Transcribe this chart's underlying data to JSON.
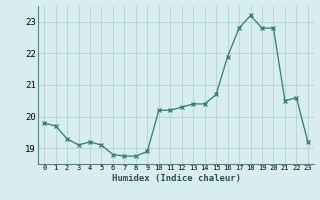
{
  "x": [
    0,
    1,
    2,
    3,
    4,
    5,
    6,
    7,
    8,
    9,
    10,
    11,
    12,
    13,
    14,
    15,
    16,
    17,
    18,
    19,
    20,
    21,
    22,
    23
  ],
  "y": [
    19.8,
    19.7,
    19.3,
    19.1,
    19.2,
    19.1,
    18.8,
    18.75,
    18.75,
    18.9,
    20.2,
    20.2,
    20.3,
    20.4,
    20.4,
    20.7,
    21.9,
    22.8,
    23.2,
    22.8,
    22.8,
    20.5,
    20.6,
    19.2
  ],
  "line_color": "#2d7d72",
  "marker": "x",
  "marker_size": 3.5,
  "xlabel": "Humidex (Indice chaleur)",
  "ylabel": "",
  "ylim": [
    18.5,
    23.5
  ],
  "xlim": [
    -0.5,
    23.5
  ],
  "yticks": [
    19,
    20,
    21,
    22,
    23
  ],
  "xtick_labels": [
    "0",
    "1",
    "2",
    "3",
    "4",
    "5",
    "6",
    "7",
    "8",
    "9",
    "10",
    "11",
    "12",
    "13",
    "14",
    "15",
    "16",
    "17",
    "18",
    "19",
    "20",
    "21",
    "22",
    "23"
  ],
  "bg_color": "#d8eeee",
  "grid_color": "#aacece",
  "spine_color": "#4a8a80",
  "tick_color": "#2d7d72",
  "xlabel_color": "#2d5050"
}
